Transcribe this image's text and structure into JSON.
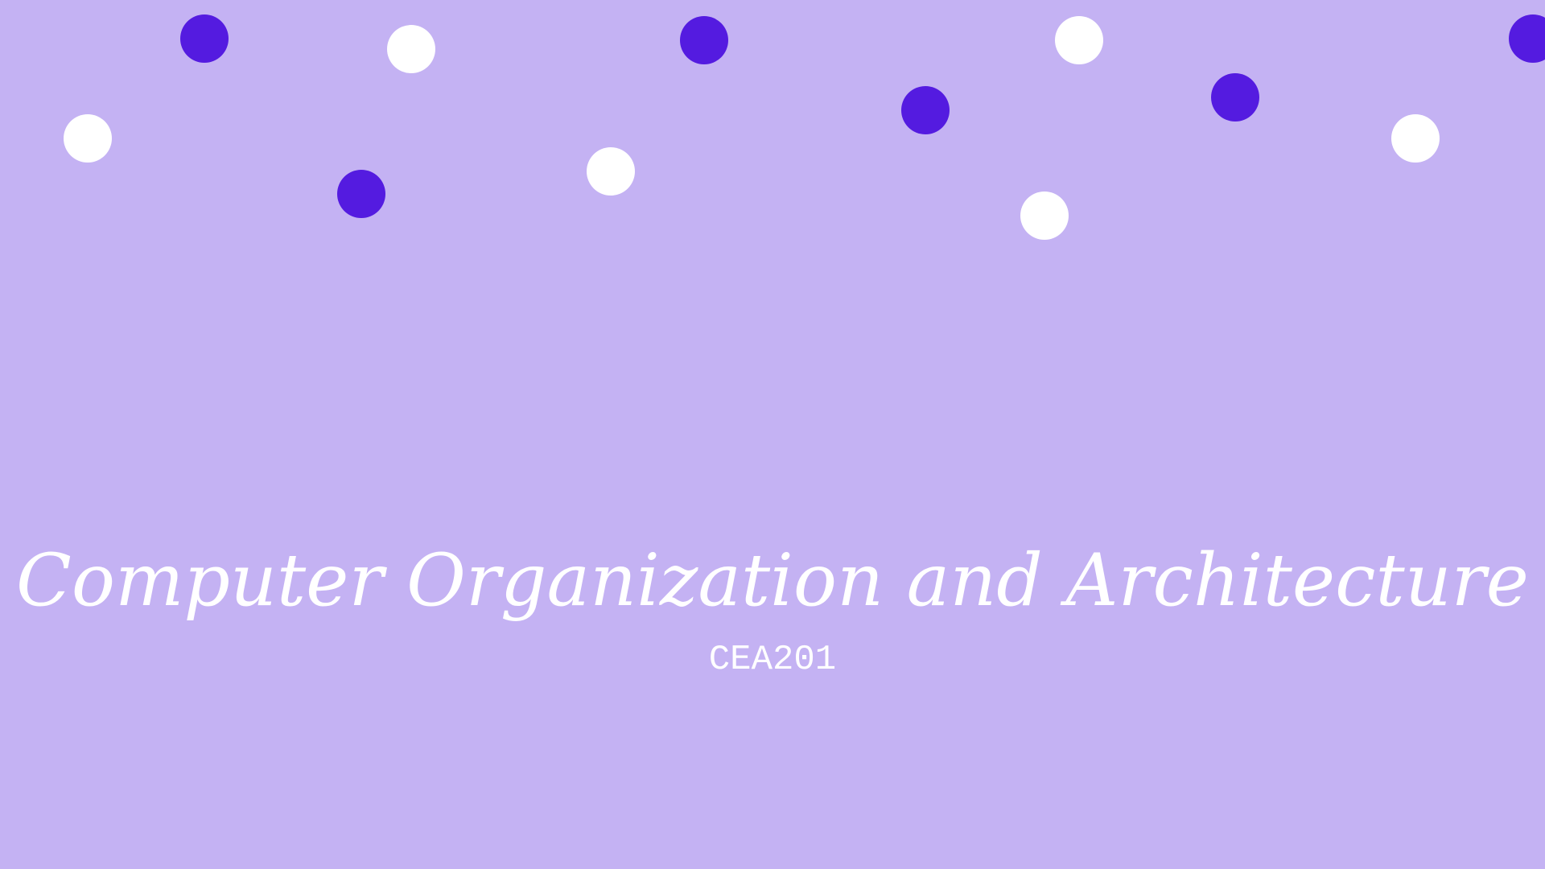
{
  "slide": {
    "title": "Computer Organization and Architecture",
    "subtitle": "CEA201"
  },
  "colors": {
    "background": "#c4b2f3",
    "dot_purple": "#541be0",
    "dot_white": "#ffffff",
    "text": "#ffffff"
  }
}
